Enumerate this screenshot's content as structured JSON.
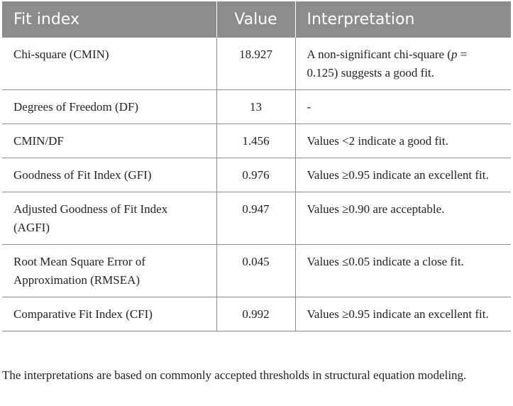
{
  "table": {
    "headers": [
      "Fit index",
      "Value",
      "Interpretation"
    ],
    "rows": [
      {
        "index": "Chi-square (CMIN)",
        "value": "18.927",
        "interpretation": "A non-significant chi-square (p = 0.125) suggests a good fit."
      },
      {
        "index": "Degrees of Freedom (DF)",
        "value": "13",
        "interpretation": "-"
      },
      {
        "index": "CMIN/DF",
        "value": "1.456",
        "interpretation": "Values <2 indicate a good fit."
      },
      {
        "index": "Goodness of Fit Index (GFI)",
        "value": "0.976",
        "interpretation": "Values ≥0.95 indicate an excellent fit."
      },
      {
        "index": "Adjusted Goodness of Fit Index (AGFI)",
        "value": "0.947",
        "interpretation": "Values ≥0.90 are acceptable."
      },
      {
        "index": "Root Mean Square Error of Approximation (RMSEA)",
        "value": "0.045",
        "interpretation": "Values ≤0.05 indicate a close fit."
      },
      {
        "index": "Comparative Fit Index (CFI)",
        "value": "0.992",
        "interpretation": "Values ≥0.95 indicate an excellent fit."
      }
    ]
  },
  "footnote": "The interpretations are based on commonly accepted thresholds in structural equation modeling."
}
